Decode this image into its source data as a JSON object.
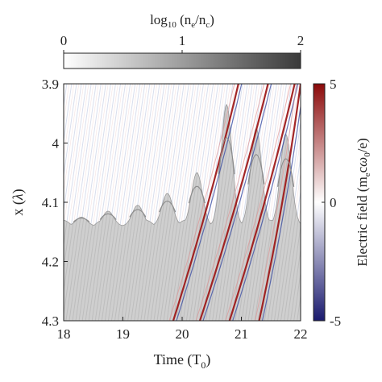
{
  "chart_data": {
    "type": "heatmap",
    "title": "",
    "xlabel": "Time (T0)",
    "xlabel_sub": "0",
    "ylabel": "x (λ)",
    "xlim": [
      18,
      22
    ],
    "ylim": [
      3.9,
      4.3
    ],
    "y_inverted": true,
    "xticks": [
      "18",
      "19",
      "20",
      "21",
      "22"
    ],
    "yticks": [
      "3.9",
      "4",
      "4.1",
      "4.2",
      "4.3"
    ],
    "density_colorbar": {
      "label": "log10 (ne/nc)",
      "range": [
        0,
        2
      ],
      "ticks": [
        "0",
        "1",
        "2"
      ],
      "colors": [
        "#ffffff",
        "#3a3a3a"
      ],
      "placement": "top"
    },
    "field_colorbar": {
      "label": "Electric field (mecω0/e)",
      "range": [
        -5,
        5
      ],
      "ticks": [
        "5",
        "0",
        "-5"
      ],
      "colors": [
        "#1a1a6e",
        "#ffffff",
        "#8b0a0a"
      ],
      "placement": "right"
    },
    "surface_peaks": [
      {
        "t": 18.3,
        "x": 4.125
      },
      {
        "t": 18.75,
        "x": 4.115
      },
      {
        "t": 19.25,
        "x": 4.105
      },
      {
        "t": 19.75,
        "x": 4.085
      },
      {
        "t": 20.25,
        "x": 4.05
      },
      {
        "t": 20.75,
        "x": 3.935
      },
      {
        "t": 21.25,
        "x": 3.975
      },
      {
        "t": 21.75,
        "x": 3.985
      }
    ],
    "field_streaks": [
      {
        "t_start": 19.85,
        "t_end": 20.95
      },
      {
        "t_start": 20.3,
        "t_end": 21.45
      },
      {
        "t_start": 20.8,
        "t_end": 21.9
      },
      {
        "t_start": 21.3,
        "t_end": 22.0
      }
    ]
  }
}
